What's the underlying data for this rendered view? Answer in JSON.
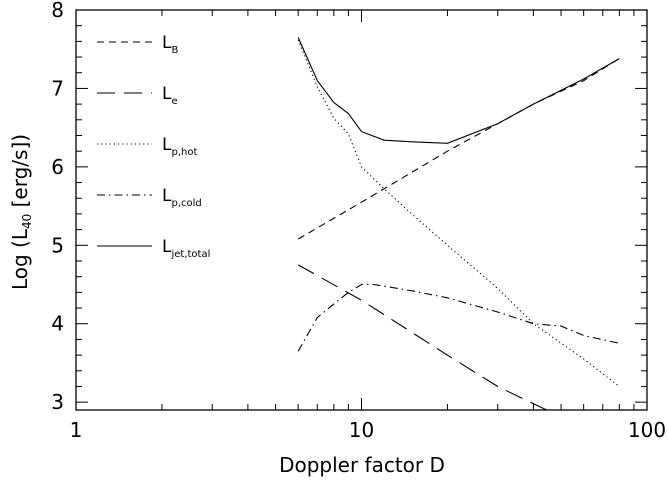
{
  "chart_data": {
    "type": "line",
    "xlabel": "Doppler factor D",
    "ylabel_main": "Log (L",
    "ylabel_sub": "40",
    "ylabel_tail": " [erg/s])",
    "xscale": "log",
    "xlim": [
      1,
      100
    ],
    "ylim": [
      2.9,
      8.0
    ],
    "x_ticks": [
      {
        "value": 1,
        "label": "1"
      },
      {
        "value": 10,
        "label": "10"
      },
      {
        "value": 100,
        "label": "100"
      }
    ],
    "y_ticks": [
      {
        "value": 3,
        "label": "3"
      },
      {
        "value": 4,
        "label": "4"
      },
      {
        "value": 5,
        "label": "5"
      },
      {
        "value": 6,
        "label": "6"
      },
      {
        "value": 7,
        "label": "7"
      },
      {
        "value": 8,
        "label": "8"
      }
    ],
    "grid": false,
    "legend_position": "top-left",
    "series": [
      {
        "key": "LB",
        "legend_main": "L",
        "legend_sub": "B",
        "dash": "short-dash",
        "x": [
          6,
          10,
          20,
          30,
          40,
          60,
          80
        ],
        "y": [
          5.08,
          5.55,
          6.2,
          6.55,
          6.8,
          7.1,
          7.38
        ]
      },
      {
        "key": "Le",
        "legend_main": "L",
        "legend_sub": "e",
        "dash": "long-dash",
        "x": [
          6,
          10,
          20,
          30,
          44.5
        ],
        "y": [
          4.75,
          4.3,
          3.6,
          3.2,
          2.9
        ]
      },
      {
        "key": "Lphot",
        "legend_main": "L",
        "legend_sub": "p,hot",
        "dash": "dotted",
        "x": [
          6,
          7,
          8,
          9,
          10,
          12,
          15,
          20,
          30,
          40,
          60,
          80
        ],
        "y": [
          7.62,
          7.02,
          6.62,
          6.42,
          6.0,
          5.72,
          5.4,
          5.0,
          4.45,
          4.0,
          3.55,
          3.2
        ]
      },
      {
        "key": "Lpcold",
        "legend_main": "L",
        "legend_sub": "p,cold",
        "dash": "dash-dot",
        "x": [
          6,
          7,
          8,
          9,
          10,
          11,
          12,
          15,
          20,
          30,
          40,
          50,
          60,
          80
        ],
        "y": [
          3.65,
          4.08,
          4.25,
          4.4,
          4.5,
          4.5,
          4.48,
          4.42,
          4.33,
          4.15,
          4.0,
          3.97,
          3.85,
          3.75
        ]
      },
      {
        "key": "Ljet",
        "legend_main": "L",
        "legend_sub": "jet,total",
        "dash": "solid",
        "x": [
          6,
          7,
          8,
          9,
          10,
          12,
          15,
          20,
          30,
          40,
          60,
          80
        ],
        "y": [
          7.65,
          7.1,
          6.82,
          6.68,
          6.45,
          6.34,
          6.32,
          6.3,
          6.55,
          6.8,
          7.12,
          7.38
        ]
      }
    ]
  }
}
